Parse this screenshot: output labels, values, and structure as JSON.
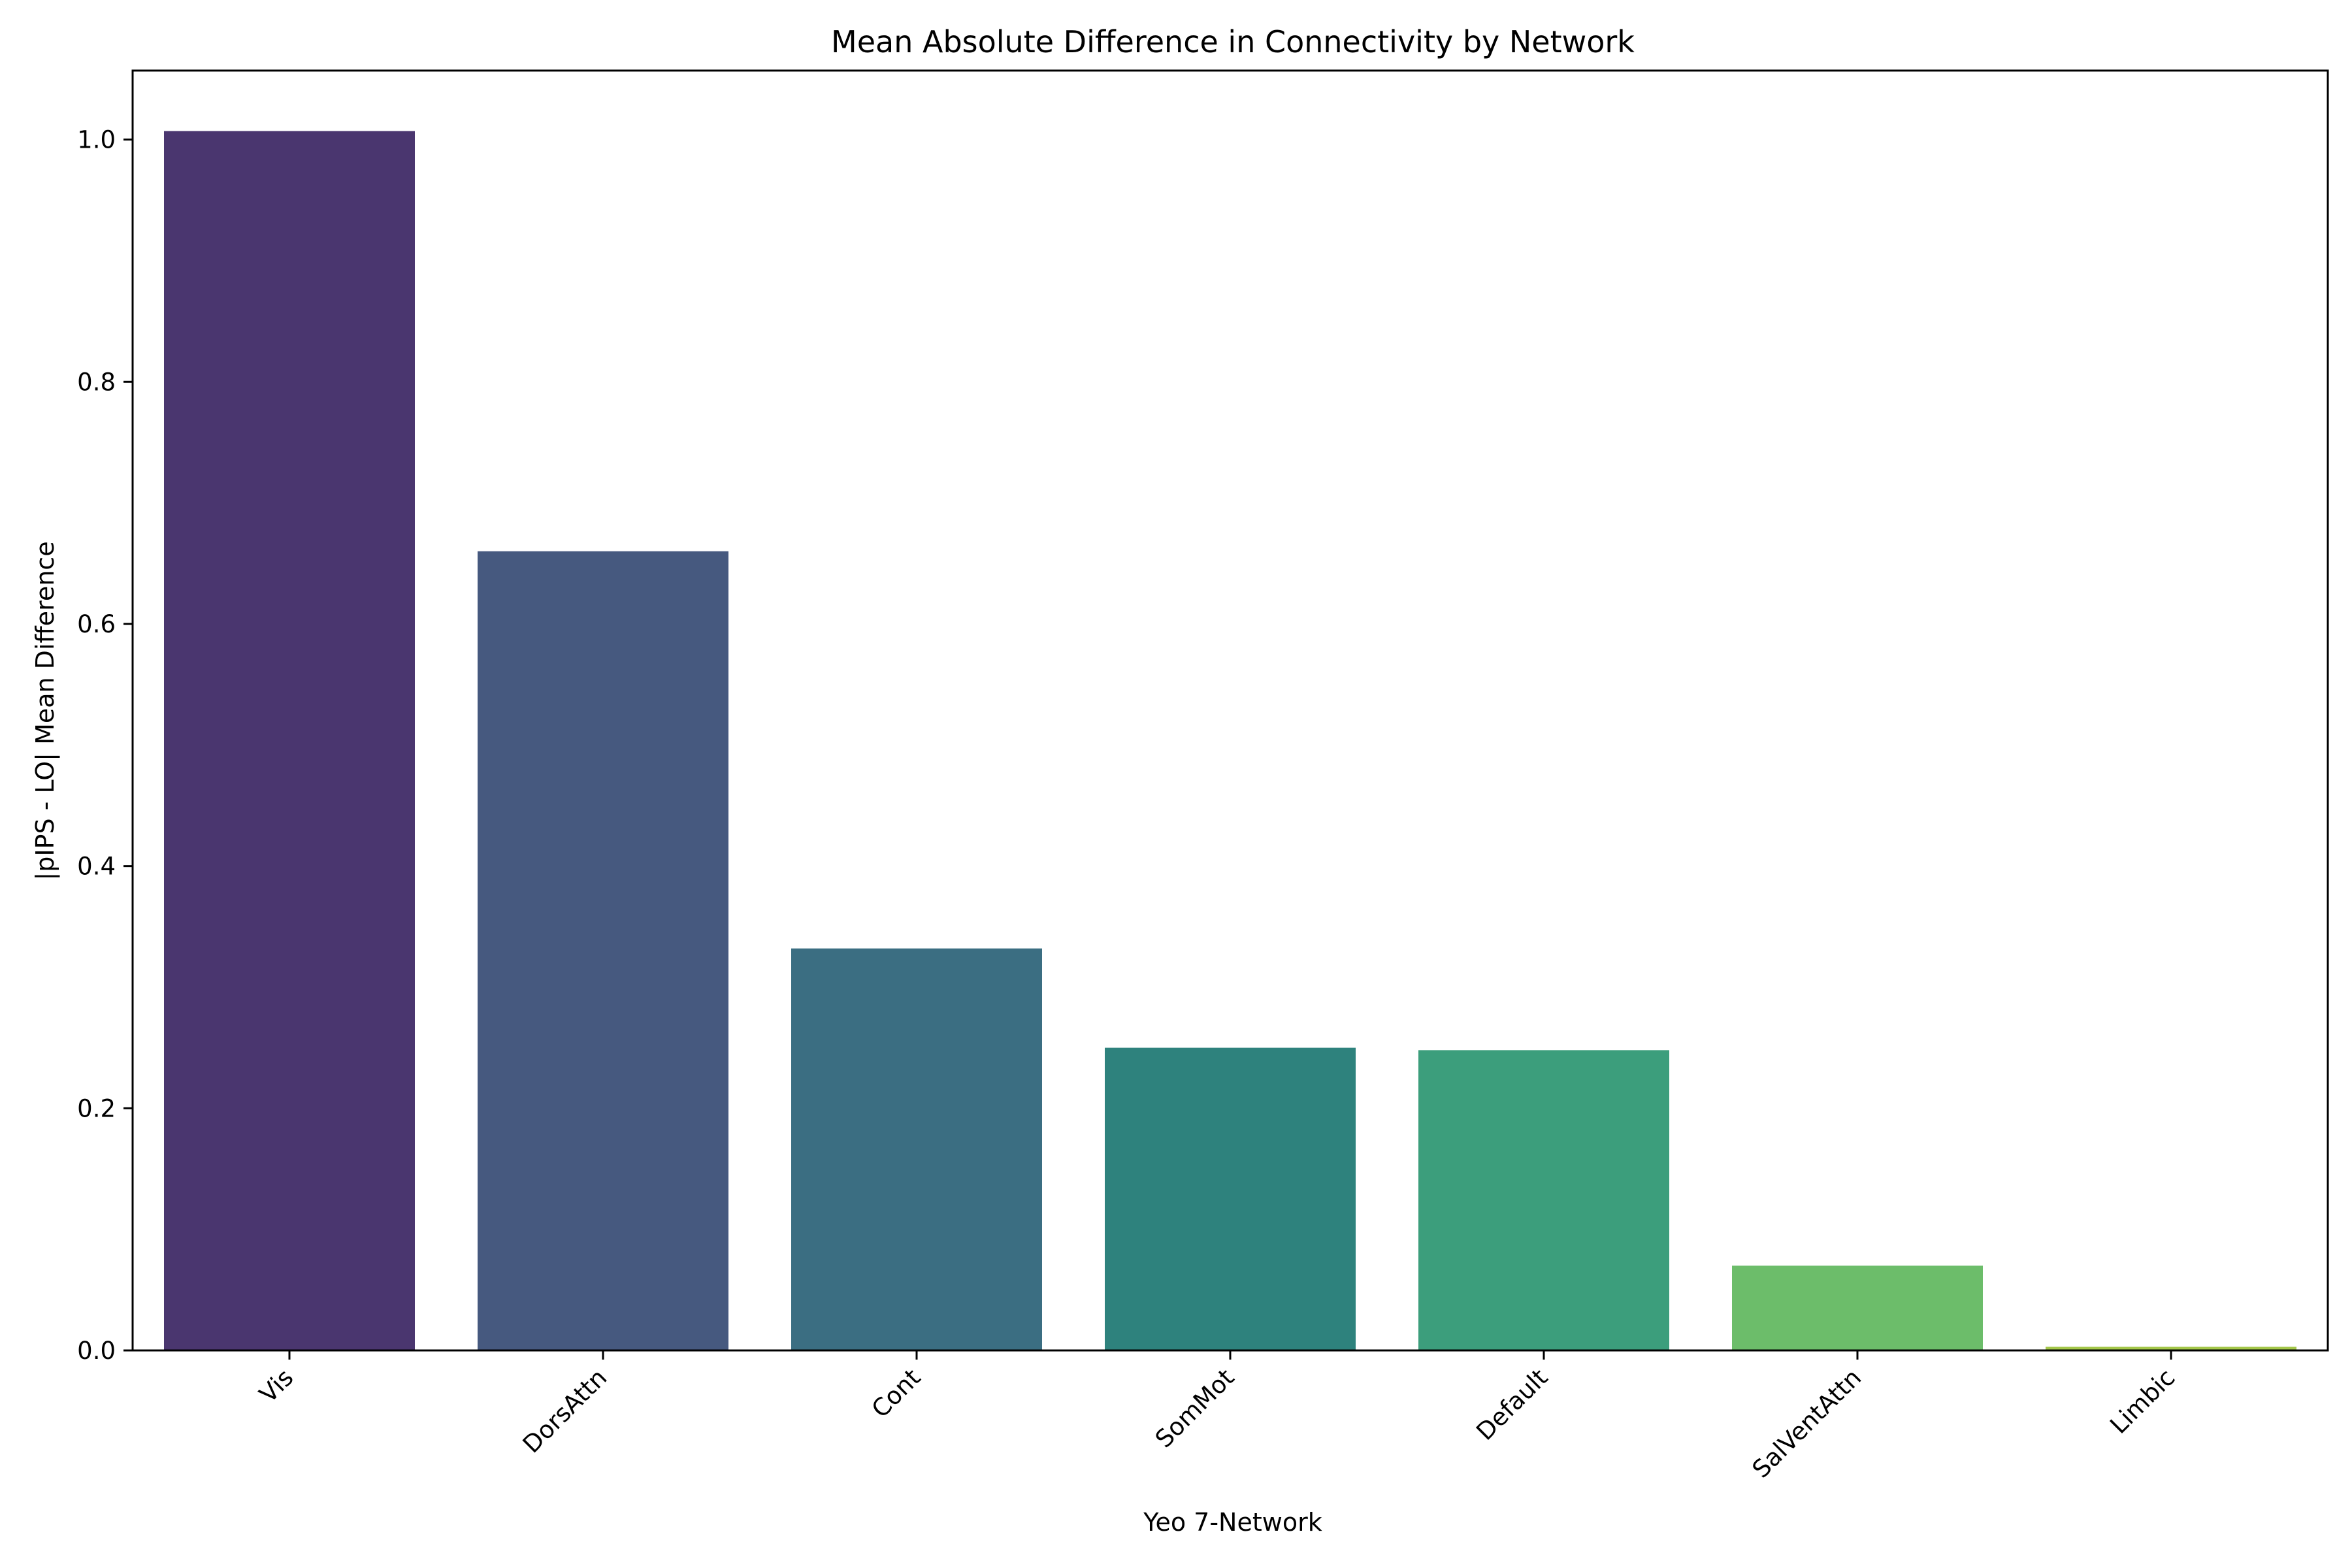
{
  "chart_data": {
    "type": "bar",
    "title": "Mean Absolute Difference in Connectivity by Network",
    "xlabel": "Yeo 7-Network",
    "ylabel": "|pIPS - LO| Mean Difference",
    "categories": [
      "Vis",
      "DorsAttn",
      "Cont",
      "SomMot",
      "Default",
      "SalVentAttn",
      "Limbic"
    ],
    "values": [
      1.007,
      0.66,
      0.332,
      0.25,
      0.248,
      0.07,
      0.003
    ],
    "colors": [
      "#4a366f",
      "#46597f",
      "#3b6e82",
      "#2e827d",
      "#3c9e7c",
      "#6cbd6a",
      "#a4c74a"
    ],
    "ylim": [
      0,
      1.057
    ],
    "yticks": [
      0.0,
      0.2,
      0.4,
      0.6,
      0.8,
      1.0
    ],
    "ytick_labels": [
      "0.0",
      "0.2",
      "0.4",
      "0.6",
      "0.8",
      "1.0"
    ],
    "grid": false,
    "legend": "none"
  }
}
